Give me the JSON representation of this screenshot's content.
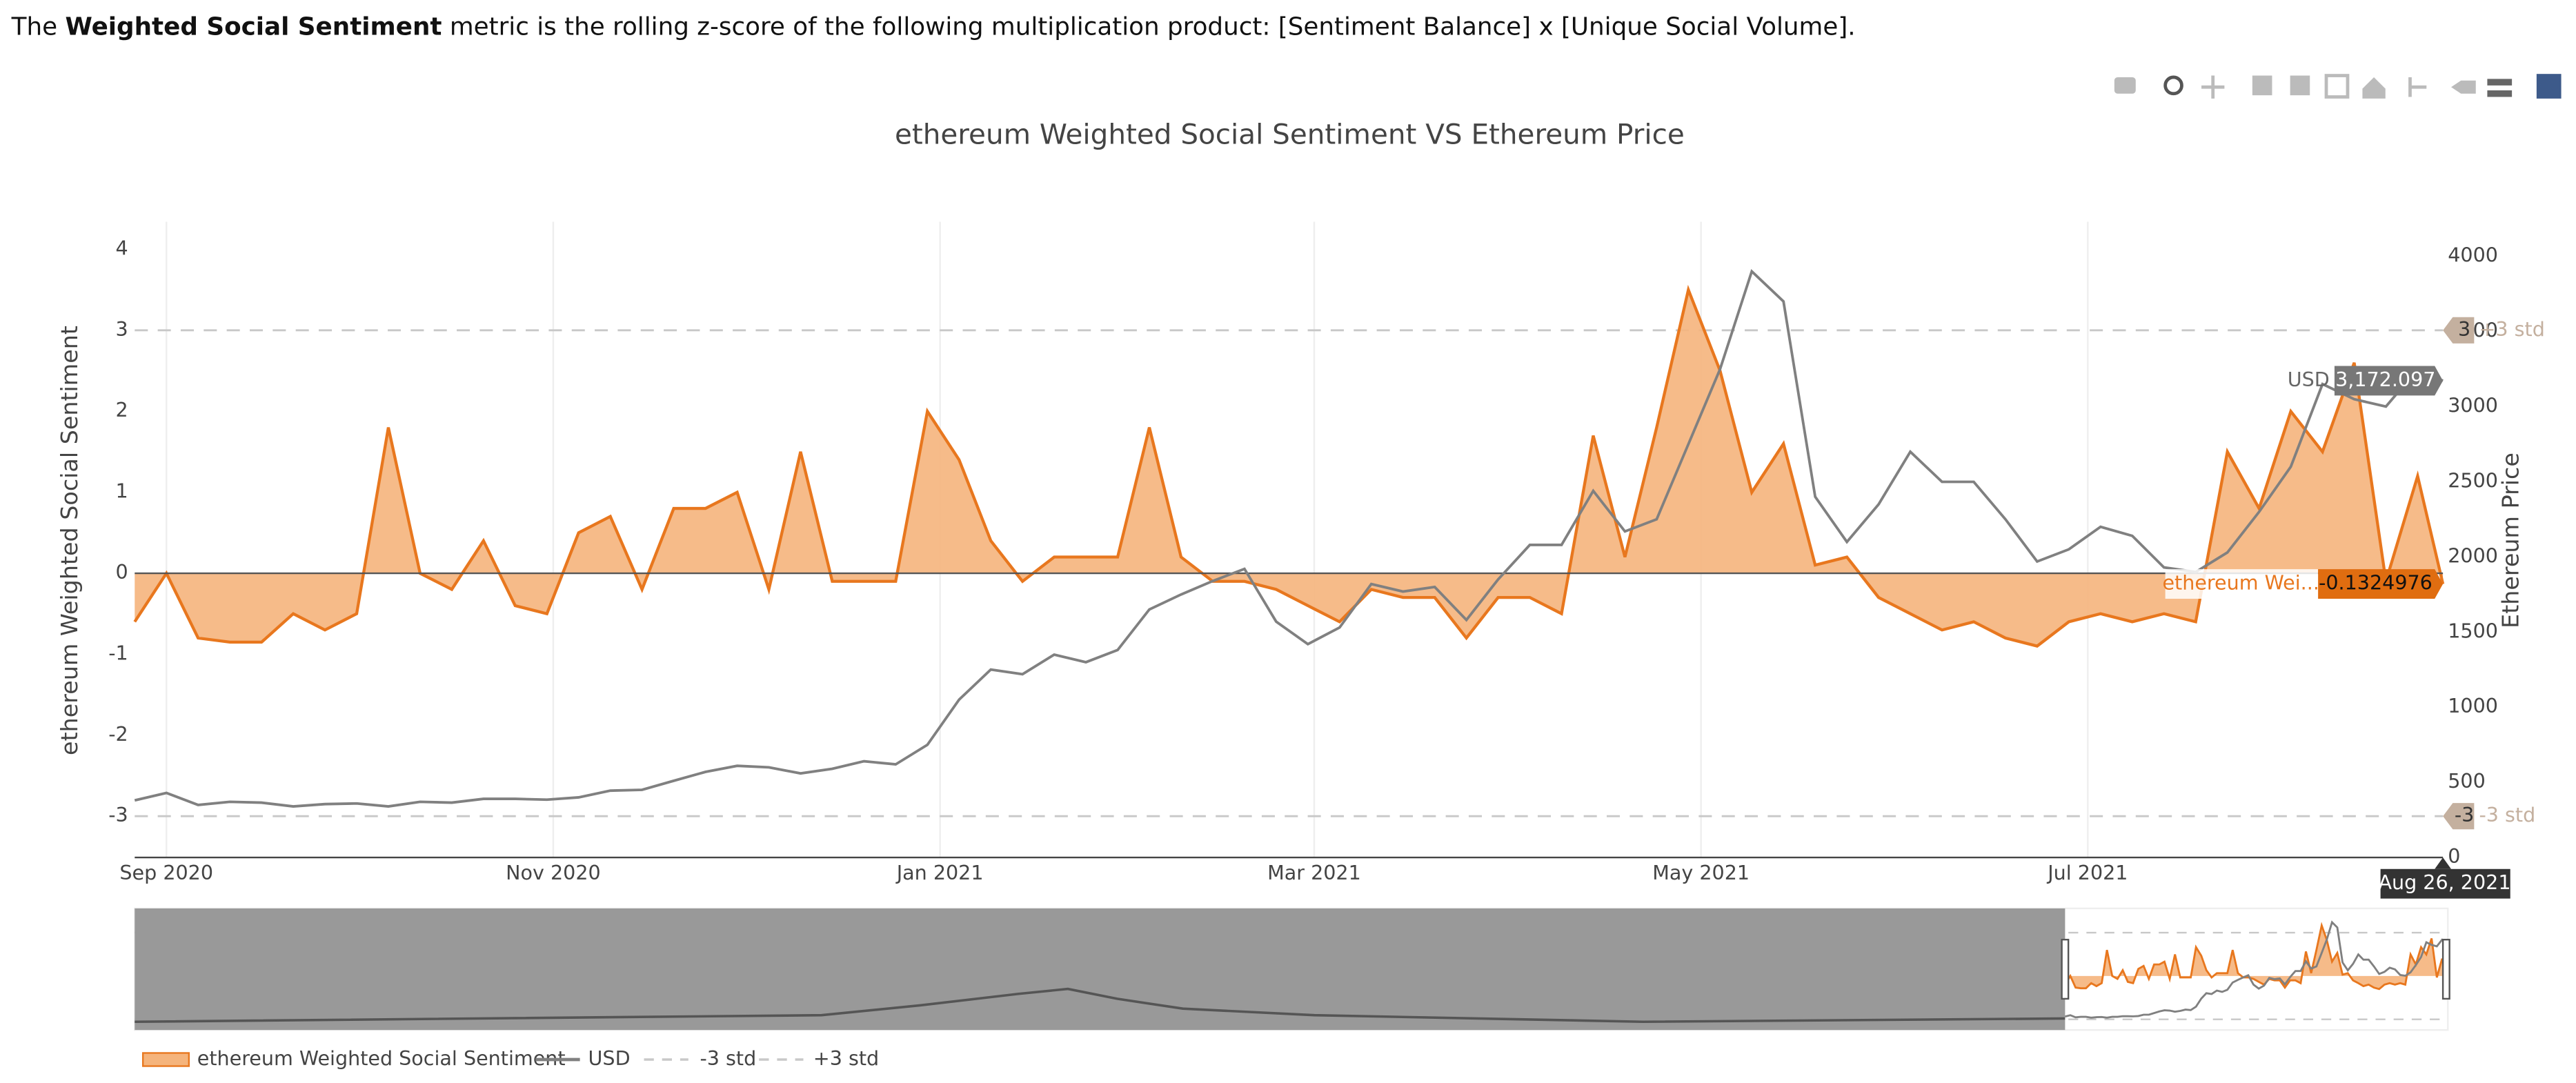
{
  "intro": {
    "before": "The ",
    "bold": "Weighted Social Sentiment",
    "after": " metric is the rolling z-score of the following multiplication product: [Sentiment Balance] x [Unique Social Volume]."
  },
  "chart_data": {
    "type": "line",
    "title": "ethereum Weighted Social Sentiment VS Ethereum Price",
    "y_label": "ethereum Weighted Social Sentiment",
    "y2_label": "Ethereum Price",
    "x": [
      "2020-08-27",
      "2020-09-01",
      "2020-09-06",
      "2020-09-11",
      "2020-09-16",
      "2020-09-21",
      "2020-09-26",
      "2020-10-01",
      "2020-10-06",
      "2020-10-11",
      "2020-10-16",
      "2020-10-21",
      "2020-10-26",
      "2020-10-31",
      "2020-11-05",
      "2020-11-10",
      "2020-11-15",
      "2020-11-20",
      "2020-11-25",
      "2020-11-30",
      "2020-12-05",
      "2020-12-10",
      "2020-12-15",
      "2020-12-20",
      "2020-12-25",
      "2020-12-30",
      "2021-01-04",
      "2021-01-09",
      "2021-01-14",
      "2021-01-19",
      "2021-01-24",
      "2021-01-29",
      "2021-02-03",
      "2021-02-08",
      "2021-02-13",
      "2021-02-18",
      "2021-02-23",
      "2021-02-28",
      "2021-03-05",
      "2021-03-10",
      "2021-03-15",
      "2021-03-20",
      "2021-03-25",
      "2021-03-30",
      "2021-04-04",
      "2021-04-09",
      "2021-04-14",
      "2021-04-19",
      "2021-04-24",
      "2021-04-29",
      "2021-05-04",
      "2021-05-09",
      "2021-05-14",
      "2021-05-19",
      "2021-05-24",
      "2021-05-29",
      "2021-06-03",
      "2021-06-08",
      "2021-06-13",
      "2021-06-18",
      "2021-06-23",
      "2021-06-28",
      "2021-07-03",
      "2021-07-08",
      "2021-07-13",
      "2021-07-18",
      "2021-07-23",
      "2021-07-28",
      "2021-08-02",
      "2021-08-07",
      "2021-08-12",
      "2021-08-17",
      "2021-08-22",
      "2021-08-26"
    ],
    "series": [
      {
        "name": "ethereum Weighted Social Sentiment",
        "color": "#e8771e",
        "fill": "#f5b47c",
        "values": [
          -0.6,
          0,
          -0.8,
          -0.85,
          -0.85,
          -0.5,
          -0.7,
          -0.5,
          1.8,
          0.0,
          -0.2,
          0.4,
          -0.4,
          -0.5,
          0.5,
          0.7,
          -0.2,
          0.8,
          0.8,
          1.0,
          -0.2,
          1.5,
          -0.1,
          -0.1,
          -0.1,
          2.0,
          1.4,
          0.4,
          -0.1,
          0.2,
          0.2,
          0.2,
          1.8,
          0.2,
          -0.1,
          -0.1,
          -0.2,
          -0.4,
          -0.6,
          -0.2,
          -0.3,
          -0.3,
          -0.8,
          -0.3,
          -0.3,
          -0.5,
          1.7,
          0.2,
          1.8,
          3.5,
          2.5,
          1.0,
          1.6,
          0.1,
          0.2,
          -0.3,
          -0.5,
          -0.7,
          -0.6,
          -0.8,
          -0.9,
          -0.6,
          -0.5,
          -0.6,
          -0.5,
          -0.6,
          1.5,
          0.8,
          2.0,
          1.5,
          2.6,
          -0.1,
          1.2,
          -0.1324976
        ]
      },
      {
        "name": "USD",
        "color": "#808080",
        "axis": "y2",
        "values": [
          380,
          430,
          350,
          370,
          365,
          340,
          355,
          360,
          340,
          370,
          365,
          390,
          390,
          385,
          400,
          445,
          450,
          510,
          570,
          610,
          600,
          560,
          590,
          640,
          620,
          750,
          1050,
          1250,
          1220,
          1350,
          1300,
          1380,
          1650,
          1750,
          1840,
          1920,
          1570,
          1420,
          1530,
          1820,
          1770,
          1800,
          1580,
          1850,
          2080,
          2080,
          2440,
          2170,
          2250,
          2750,
          3250,
          3900,
          3700,
          2400,
          2100,
          2350,
          2700,
          2500,
          2500,
          2250,
          1970,
          2050,
          2200,
          2140,
          1930,
          1900,
          2030,
          2300,
          2600,
          3150,
          3050,
          3000,
          3250,
          3172.097
        ]
      },
      {
        "name": "-3 std",
        "color": "#c8c8c8",
        "level": -3,
        "tag_color": "#c4b09f",
        "tag_text": "-3 std"
      },
      {
        "name": "+3 std",
        "color": "#c8c8c8",
        "level": 3,
        "tag_color": "#c4b09f",
        "tag_text": "+3 std"
      }
    ],
    "xlim": [
      "2020-08-27",
      "2021-08-26"
    ],
    "xticks": [
      {
        "value": "2020-09-01",
        "label": "Sep 2020"
      },
      {
        "value": "2020-11-01",
        "label": "Nov 2020"
      },
      {
        "value": "2021-01-01",
        "label": "Jan 2021"
      },
      {
        "value": "2021-03-01",
        "label": "Mar 2021"
      },
      {
        "value": "2021-05-01",
        "label": "May 2021"
      },
      {
        "value": "2021-07-01",
        "label": "Jul 2021"
      }
    ],
    "ylim": [
      -3.51,
      4.34
    ],
    "yticks": [
      -3,
      -2,
      -1,
      0,
      1,
      2,
      3,
      4
    ],
    "y2lim": [
      0,
      4230
    ],
    "y2ticks": [
      0,
      500,
      1000,
      1500,
      2000,
      2500,
      3000,
      3500,
      4000
    ],
    "grid": true,
    "hover": {
      "date": "Aug 26, 2021",
      "sentiment_name": "ethereum Wei...",
      "sentiment_value": -0.1324976,
      "usd_value": {
        "value": 3172.097,
        "label": "3,172.097"
      }
    }
  }
}
